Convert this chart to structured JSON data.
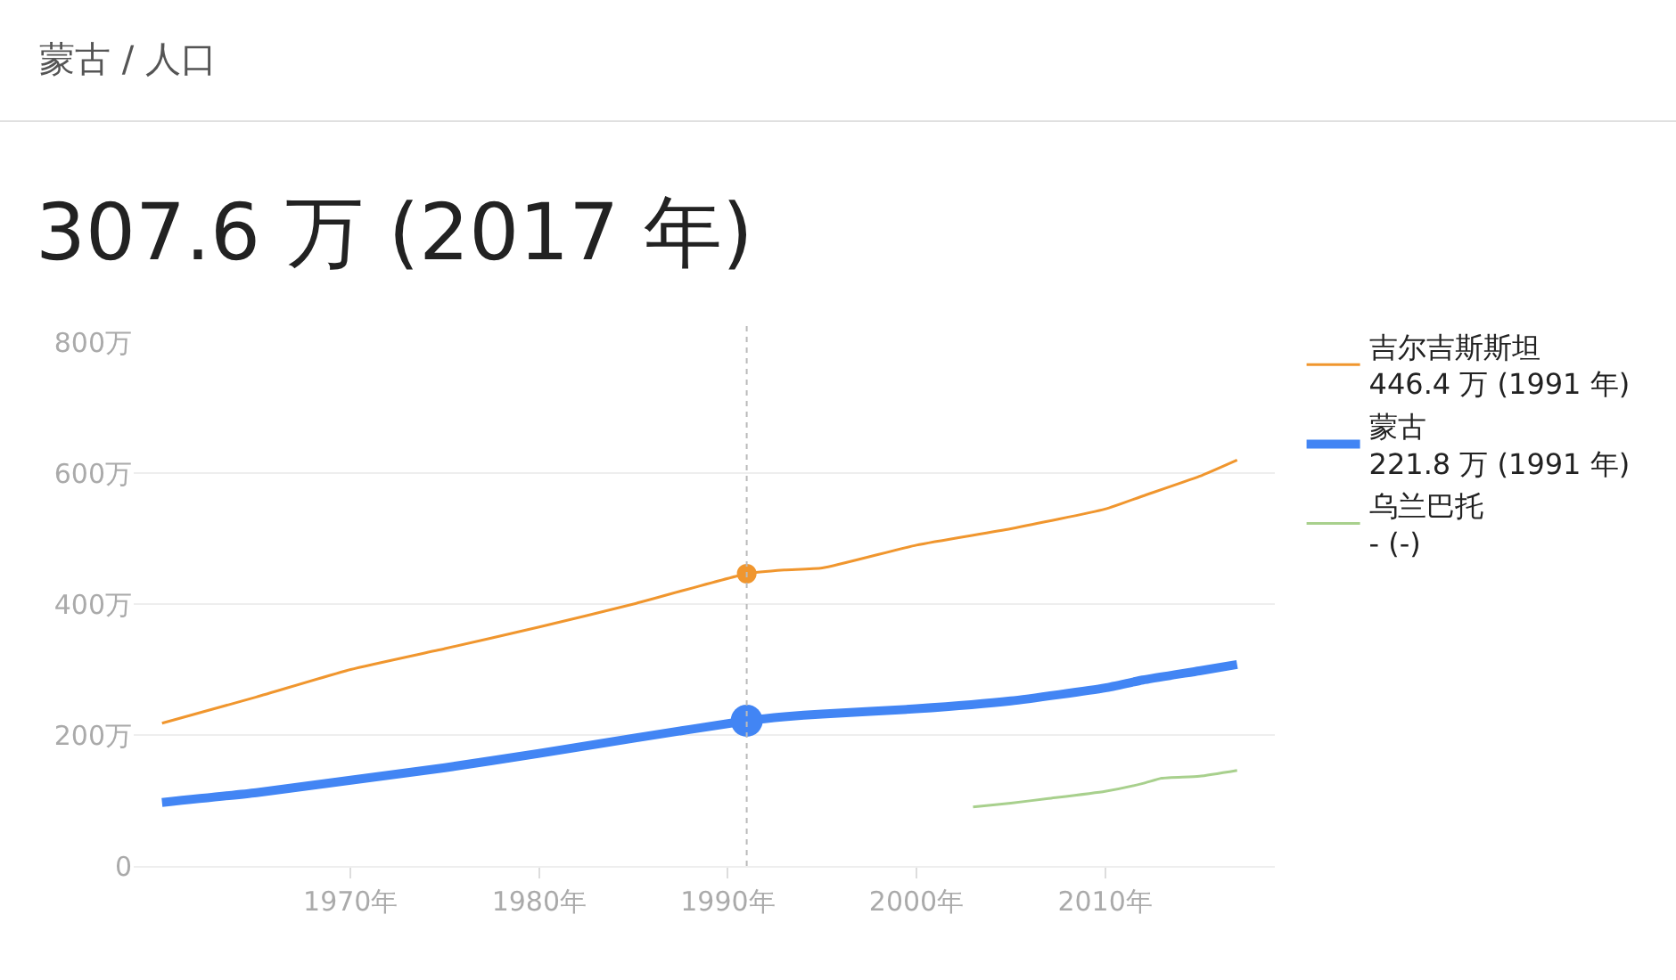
{
  "chart_data": {
    "type": "line",
    "title": "307.6 万 (2017 年)",
    "subtitle": "蒙古 / 人口",
    "x": [
      1960,
      1965,
      1970,
      1975,
      1980,
      1985,
      1991,
      1993,
      1995,
      2000,
      2005,
      2010,
      2012,
      2015,
      2017
    ],
    "series": [
      {
        "name": "吉尔吉斯斯坦",
        "color": "#f0962e",
        "values": [
          218,
          258,
          300,
          332,
          365,
          400,
          446.4,
          452,
          455,
          490,
          515,
          545,
          565,
          595,
          620
        ]
      },
      {
        "name": "蒙古",
        "color": "#4285f4",
        "values": [
          97,
          112,
          131,
          150,
          172,
          195,
          221.8,
          228,
          232,
          240,
          252,
          272,
          284,
          298,
          307.6
        ]
      },
      {
        "name": "乌兰巴托",
        "color": "#a8d08d",
        "x": [
          2003,
          2005,
          2007,
          2010,
          2012,
          2013,
          2015,
          2017
        ],
        "values": [
          90,
          96,
          103,
          114,
          126,
          134,
          137,
          146
        ]
      }
    ],
    "annotations": [
      "446.4 万 (1991 年)",
      "221.8 万 (1991 年)",
      "- (-)"
    ],
    "xlim": [
      1958.5,
      2019
    ],
    "xticks": [
      {
        "value": 1970,
        "label": "1970年"
      },
      {
        "value": 1980,
        "label": "1980年"
      },
      {
        "value": 1990,
        "label": "1990年"
      },
      {
        "value": 2000,
        "label": "2000年"
      },
      {
        "value": 2010,
        "label": "2010年"
      }
    ],
    "ylim": [
      0,
      800
    ],
    "yticks": [
      0,
      {
        "value": 200,
        "label": "200万"
      },
      {
        "value": 400,
        "label": "400万"
      },
      {
        "value": 600,
        "label": "600万"
      },
      {
        "value": 800,
        "label": "800万"
      }
    ],
    "ref_lines": [
      {
        "axis": "x",
        "value": 1991,
        "color": "#bbbbbb",
        "line_style": "dotted"
      }
    ],
    "grid": "y",
    "legend": "right",
    "marker": "none",
    "line_style": "solid"
  }
}
